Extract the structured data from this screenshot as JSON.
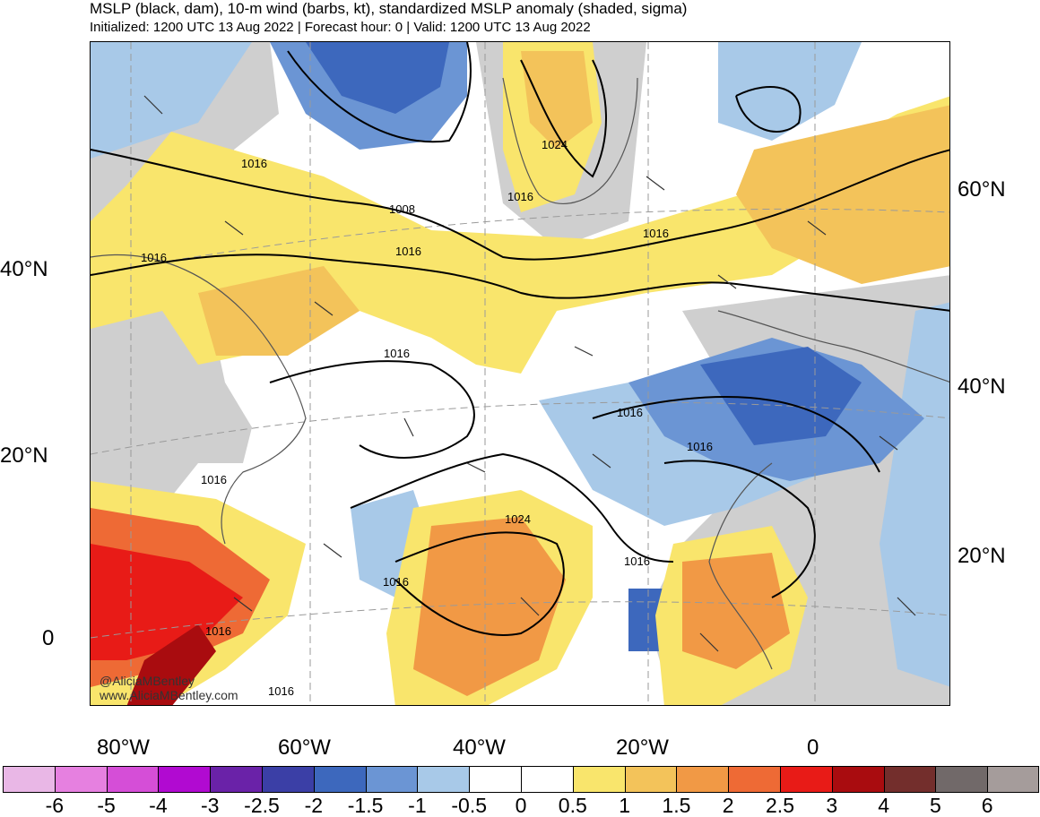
{
  "title": "MSLP (black, dam), 10-m wind (barbs, kt), standardized MSLP anomaly (shaded, sigma)",
  "subtitle": "Initialized: 1200 UTC 13 Aug 2022 | Forecast hour: 0 | Valid: 1200 UTC 13 Aug 2022",
  "map": {
    "credit_handle": "@AliciaMBentley",
    "credit_site": "www.AliciaMBentley.com",
    "isobar_labels": [
      "1016",
      "1016",
      "1008",
      "1016",
      "1024",
      "1016",
      "1016",
      "1016",
      "1016",
      "1016",
      "1016",
      "1024",
      "1016",
      "1016",
      "1016",
      "1016"
    ]
  },
  "lat_labels_left": [
    "40°N",
    "20°N",
    "0"
  ],
  "lat_labels_right": [
    "60°N",
    "40°N",
    "20°N"
  ],
  "lon_labels": [
    "80°W",
    "60°W",
    "40°W",
    "20°W",
    "0"
  ],
  "colorbar": {
    "colors": [
      "#e9b7e6",
      "#e680e0",
      "#d54ed7",
      "#b10ad1",
      "#6a22a8",
      "#3b3fa6",
      "#3d68bd",
      "#6b95d4",
      "#a8c9e8",
      "#ffffff",
      "#ffffff",
      "#f9e56c",
      "#f3c35a",
      "#f19945",
      "#ee6a35",
      "#e81b17",
      "#a90c0f",
      "#732e2c",
      "#716969",
      "#a59c9b"
    ],
    "labels": [
      "-6",
      "-5",
      "-4",
      "-3",
      "-2.5",
      "-2",
      "-1.5",
      "-1",
      "-0.5",
      "0",
      "0.5",
      "1",
      "1.5",
      "2",
      "2.5",
      "3",
      "4",
      "5",
      "6"
    ]
  }
}
